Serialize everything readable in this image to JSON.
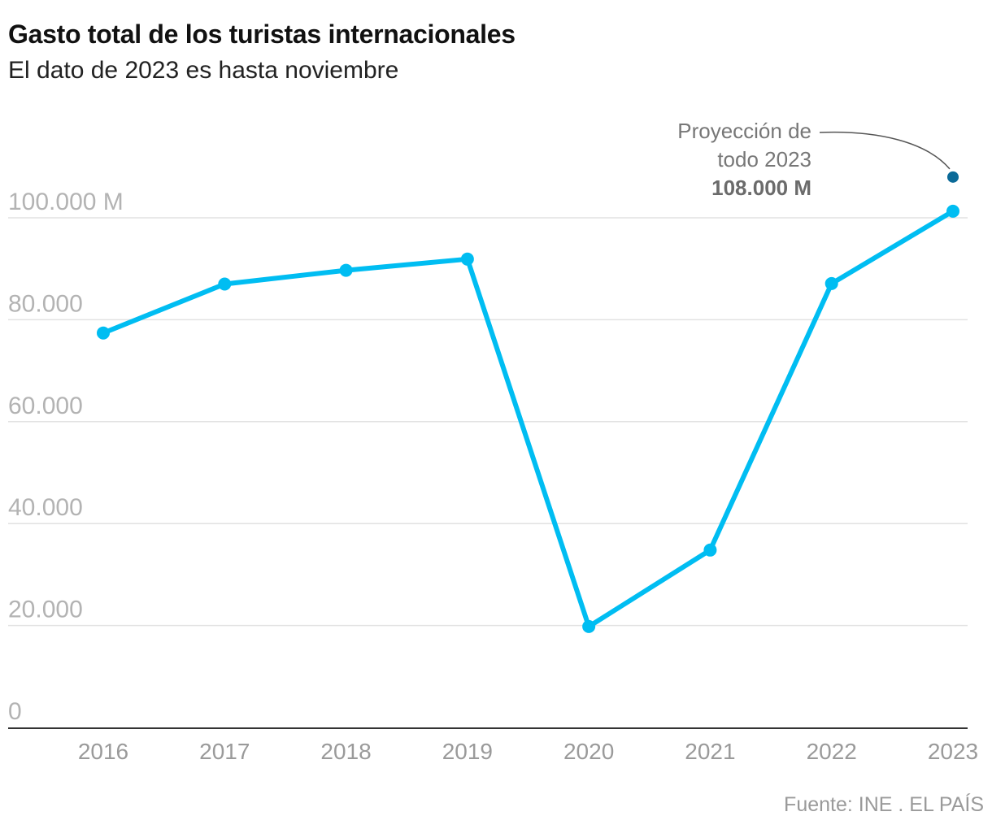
{
  "chart_data": {
    "type": "line",
    "title": "Gasto total de los turistas internacionales",
    "subtitle": "El dato de 2023 es hasta noviembre",
    "x": [
      "2016",
      "2017",
      "2018",
      "2019",
      "2020",
      "2021",
      "2022",
      "2023"
    ],
    "series": [
      {
        "values": [
          77400,
          87000,
          89700,
          91900,
          19800,
          34800,
          87100,
          101300
        ],
        "color": "#00bdf2"
      }
    ],
    "projection": {
      "x": "2023",
      "value": 108000,
      "color": "#0b6a98",
      "label_lines": [
        "Proyección de",
        "todo 2023"
      ],
      "value_label": "108.000 M"
    },
    "ylim": [
      0,
      110000
    ],
    "y_ticks": [
      {
        "value": 0,
        "label": "0"
      },
      {
        "value": 20000,
        "label": "20.000"
      },
      {
        "value": 40000,
        "label": "40.000"
      },
      {
        "value": 60000,
        "label": "60.000"
      },
      {
        "value": 80000,
        "label": "80.000"
      },
      {
        "value": 100000,
        "label": "100.000 M"
      }
    ],
    "xlabel": "",
    "ylabel": "",
    "grid": true,
    "axis_color": "#333333",
    "grid_color": "#e2e2e2"
  },
  "source": "Fuente: INE . EL PAÍS"
}
